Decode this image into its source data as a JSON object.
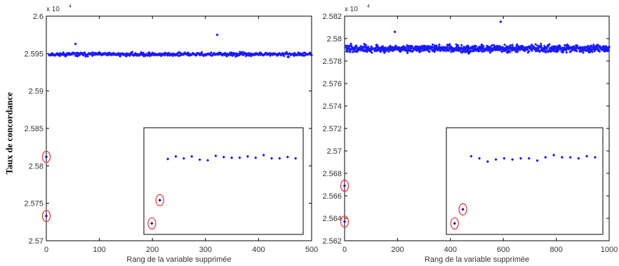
{
  "y_axis_label": "Taux de concordance",
  "chart_data": [
    {
      "type": "scatter",
      "title": "",
      "xlabel": "Rang de la variable supprimée",
      "ylabel": "Taux de concordance",
      "y_exponent_label": "x 10",
      "y_exponent_power": "4",
      "xlim": [
        0,
        500
      ],
      "ylim": [
        2.57,
        2.6
      ],
      "xticks": [
        "0",
        "100",
        "200",
        "300",
        "400",
        "500"
      ],
      "yticks": [
        "2.57",
        "2.575",
        "2.58",
        "2.585",
        "2.59",
        "2.595",
        "2.6"
      ],
      "marker_color": "#1a1aff",
      "highlight_color": "#e83030",
      "series": [
        {
          "description_of_bulk": "about 500 points fluctuating around 2.5949 with spread about 0.0003",
          "x_range": [
            5,
            500
          ],
          "y_center": 2.5949,
          "y_spread": 0.0003
        }
      ],
      "highlighted_points": [
        {
          "x": 0,
          "y": 2.5812
        },
        {
          "x": 0,
          "y": 2.5733
        }
      ],
      "peak_points": [
        {
          "x": 55,
          "y": 2.5963
        },
        {
          "x": 322,
          "y": 2.5975
        }
      ],
      "inset": {
        "highlighted_points": [
          {
            "x": 1,
            "y": 2.5726
          },
          {
            "x": 2,
            "y": 2.5762
          }
        ],
        "points": [
          {
            "x": 3,
            "y": 2.5826
          },
          {
            "x": 4,
            "y": 2.583
          },
          {
            "x": 5,
            "y": 2.5827
          },
          {
            "x": 6,
            "y": 2.583
          },
          {
            "x": 7,
            "y": 2.5825
          },
          {
            "x": 8,
            "y": 2.5824
          },
          {
            "x": 9,
            "y": 2.5831
          },
          {
            "x": 10,
            "y": 2.5829
          },
          {
            "x": 11,
            "y": 2.5828
          },
          {
            "x": 12,
            "y": 2.5828
          },
          {
            "x": 13,
            "y": 2.583
          },
          {
            "x": 14,
            "y": 2.5828
          },
          {
            "x": 15,
            "y": 2.5832
          },
          {
            "x": 16,
            "y": 2.5827
          },
          {
            "x": 17,
            "y": 2.5827
          },
          {
            "x": 18,
            "y": 2.5829
          },
          {
            "x": 19,
            "y": 2.5827
          }
        ]
      }
    },
    {
      "type": "scatter",
      "title": "",
      "xlabel": "Rang de la variable supprimée",
      "ylabel": "Taux de concordance",
      "y_exponent_label": "x 10",
      "y_exponent_power": "4",
      "xlim": [
        0,
        1000
      ],
      "ylim": [
        2.562,
        2.582
      ],
      "xticks": [
        "0",
        "200",
        "400",
        "600",
        "800",
        "1000"
      ],
      "yticks": [
        "2.562",
        "2.564",
        "2.566",
        "2.568",
        "2.57",
        "2.572",
        "2.574",
        "2.576",
        "2.578",
        "2.58",
        "2.582"
      ],
      "marker_color": "#1a1aff",
      "highlight_color": "#e83030",
      "series": [
        {
          "description_of_bulk": "about 1000 points fluctuating around 2.5791 with spread about 0.0004",
          "x_range": [
            5,
            1000
          ],
          "y_center": 2.5791,
          "y_spread": 0.0004
        }
      ],
      "highlighted_points": [
        {
          "x": 0,
          "y": 2.5669
        },
        {
          "x": 0,
          "y": 2.5637
        }
      ],
      "peak_points": [
        {
          "x": 590,
          "y": 2.5815
        },
        {
          "x": 190,
          "y": 2.5806
        }
      ],
      "inset": {
        "highlighted_points": [
          {
            "x": 1,
            "y": 2.5639
          },
          {
            "x": 2,
            "y": 2.5652
          }
        ],
        "points": [
          {
            "x": 3,
            "y": 2.5701
          },
          {
            "x": 4,
            "y": 2.5699
          },
          {
            "x": 5,
            "y": 2.5696
          },
          {
            "x": 6,
            "y": 2.5698
          },
          {
            "x": 7,
            "y": 2.5699
          },
          {
            "x": 8,
            "y": 2.5698
          },
          {
            "x": 9,
            "y": 2.5699
          },
          {
            "x": 10,
            "y": 2.5699
          },
          {
            "x": 11,
            "y": 2.5697
          },
          {
            "x": 12,
            "y": 2.57
          },
          {
            "x": 13,
            "y": 2.5702
          },
          {
            "x": 14,
            "y": 2.57
          },
          {
            "x": 15,
            "y": 2.57
          },
          {
            "x": 16,
            "y": 2.5699
          },
          {
            "x": 17,
            "y": 2.5701
          },
          {
            "x": 18,
            "y": 2.57
          }
        ]
      }
    }
  ]
}
